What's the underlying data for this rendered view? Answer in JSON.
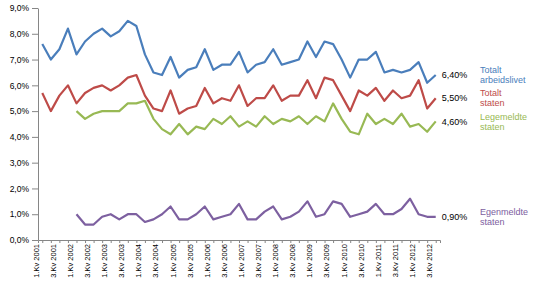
{
  "chart_data": {
    "type": "line",
    "categories": [
      "1.Kv 2001",
      null,
      "3.Kv 2001",
      null,
      "1.Kv 2002",
      null,
      "3.Kv 2002",
      null,
      "1.Kv 2003",
      null,
      "3.Kv 2003",
      null,
      "1.Kv 2004",
      null,
      "3.Kv 2004",
      null,
      "1.Kv 2005",
      null,
      "3.Kv 2005",
      null,
      "1.Kv 2006",
      null,
      "3.Kv 2006",
      null,
      "1.Kv 2007",
      null,
      "3.Kv 2007",
      null,
      "1.Kv 2008",
      null,
      "3.Kv 2008",
      null,
      "1.Kv 2009",
      null,
      "3.Kv 2009",
      null,
      "1.Kv 2010",
      null,
      "3.Kv 2010",
      null,
      "1.Kv 2011",
      null,
      "3.Kv 2011",
      null,
      "1.Kv 2012",
      null,
      "3.Kv 2012"
    ],
    "series": [
      {
        "name": "Totalt arbeidslivet",
        "color": "#4a7ebb",
        "values": [
          7.6,
          7.0,
          7.4,
          8.2,
          7.2,
          7.7,
          8.0,
          8.2,
          7.9,
          8.1,
          8.5,
          8.3,
          7.2,
          6.5,
          6.4,
          7.1,
          6.3,
          6.6,
          6.7,
          7.4,
          6.6,
          6.8,
          6.8,
          7.3,
          6.5,
          6.8,
          6.9,
          7.4,
          6.8,
          6.9,
          7.0,
          7.7,
          7.1,
          7.7,
          7.6,
          7.0,
          6.3,
          7.0,
          7.0,
          7.3,
          6.5,
          6.6,
          6.5,
          6.6,
          6.9,
          6.1,
          6.4
        ],
        "value_labels": [
          null,
          null,
          null,
          null,
          null,
          null,
          null,
          null,
          null,
          null,
          null,
          null,
          null,
          null,
          null,
          null,
          null,
          null,
          null,
          null,
          null,
          null,
          null,
          null,
          null,
          null,
          null,
          null,
          null,
          null,
          null,
          null,
          null,
          null,
          null,
          null,
          null,
          null,
          null,
          null,
          null,
          null,
          null,
          null,
          null,
          null,
          "6,40%"
        ]
      },
      {
        "name": "Totalt staten",
        "color": "#be4b48",
        "values": [
          5.7,
          5.0,
          5.6,
          6.0,
          5.3,
          5.7,
          5.9,
          6.0,
          5.8,
          6.0,
          6.3,
          6.4,
          5.6,
          5.1,
          5.0,
          5.8,
          4.9,
          5.1,
          5.2,
          5.9,
          5.3,
          5.5,
          5.4,
          6.0,
          5.2,
          5.5,
          5.5,
          6.0,
          5.4,
          5.6,
          5.6,
          6.2,
          5.5,
          6.3,
          6.2,
          5.6,
          5.0,
          5.8,
          5.6,
          5.9,
          5.4,
          5.8,
          5.5,
          5.6,
          6.2,
          5.1,
          5.5
        ],
        "value_labels": [
          null,
          null,
          null,
          null,
          null,
          null,
          null,
          null,
          null,
          null,
          null,
          null,
          null,
          null,
          null,
          null,
          null,
          null,
          null,
          null,
          null,
          null,
          null,
          null,
          null,
          null,
          null,
          null,
          null,
          null,
          null,
          null,
          null,
          null,
          null,
          null,
          null,
          null,
          null,
          null,
          null,
          null,
          null,
          null,
          null,
          null,
          "5,50%"
        ]
      },
      {
        "name": "Legemeldte staten",
        "color": "#98b954",
        "values": [
          null,
          null,
          null,
          null,
          5.0,
          4.7,
          4.9,
          5.0,
          5.0,
          5.0,
          5.3,
          5.3,
          5.4,
          4.7,
          4.3,
          4.1,
          4.5,
          4.1,
          4.4,
          4.3,
          4.7,
          4.5,
          4.8,
          4.4,
          4.6,
          4.4,
          4.8,
          4.5,
          4.7,
          4.6,
          4.8,
          4.5,
          4.8,
          4.6,
          5.3,
          4.7,
          4.2,
          4.1,
          4.9,
          4.5,
          4.7,
          4.5,
          4.9,
          4.4,
          4.5,
          4.2,
          4.6
        ],
        "value_labels": [
          null,
          null,
          null,
          null,
          null,
          null,
          null,
          null,
          null,
          null,
          null,
          null,
          null,
          null,
          null,
          null,
          null,
          null,
          null,
          null,
          null,
          null,
          null,
          null,
          null,
          null,
          null,
          null,
          null,
          null,
          null,
          null,
          null,
          null,
          null,
          null,
          null,
          null,
          null,
          null,
          null,
          null,
          null,
          null,
          null,
          null,
          "4,60%"
        ]
      },
      {
        "name": "Egenmeldte staten",
        "color": "#7d60a0",
        "values": [
          null,
          null,
          null,
          null,
          1.0,
          0.6,
          0.6,
          0.9,
          1.0,
          0.8,
          1.0,
          1.0,
          0.7,
          0.8,
          1.0,
          1.3,
          0.8,
          0.8,
          1.0,
          1.3,
          0.8,
          0.9,
          1.0,
          1.4,
          0.8,
          0.8,
          1.1,
          1.3,
          0.8,
          0.9,
          1.1,
          1.5,
          0.9,
          1.0,
          1.5,
          1.4,
          0.9,
          1.0,
          1.1,
          1.4,
          1.0,
          1.0,
          1.2,
          1.6,
          1.0,
          0.9,
          0.9
        ],
        "value_labels": [
          null,
          null,
          null,
          null,
          null,
          null,
          null,
          null,
          null,
          null,
          null,
          null,
          null,
          null,
          null,
          null,
          null,
          null,
          null,
          null,
          null,
          null,
          null,
          null,
          null,
          null,
          null,
          null,
          null,
          null,
          null,
          null,
          null,
          null,
          null,
          null,
          null,
          null,
          null,
          null,
          null,
          null,
          null,
          null,
          null,
          null,
          "0,90%"
        ]
      }
    ],
    "ylim": [
      0,
      9
    ],
    "yticks": [
      {
        "value": 0,
        "label": "0,0%"
      },
      {
        "value": 1,
        "label": "1,0%"
      },
      {
        "value": 2,
        "label": "2,0%"
      },
      {
        "value": 3,
        "label": "3,0%"
      },
      {
        "value": 4,
        "label": "4,0%"
      },
      {
        "value": 5,
        "label": "5,0%"
      },
      {
        "value": 6,
        "label": "6,0%"
      },
      {
        "value": 7,
        "label": "7,0%"
      },
      {
        "value": 8,
        "label": "8,0%"
      },
      {
        "value": 9,
        "label": "9,0%"
      }
    ],
    "grid": false,
    "legend": "right",
    "data_labels": true
  }
}
